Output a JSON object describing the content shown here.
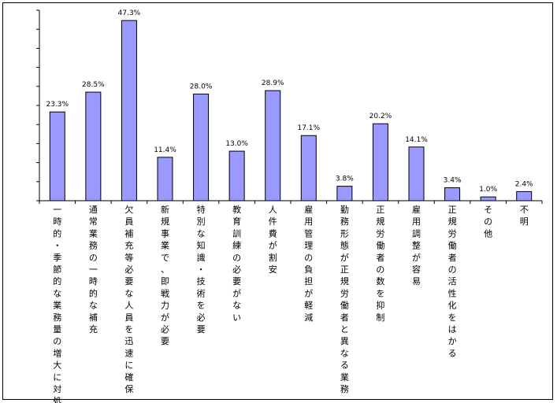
{
  "chart_data": {
    "type": "bar",
    "categories": [
      "一時的・季節的な業務量の増大に対処",
      "通常業務の一時的な補充",
      "欠員補充等必要な人員を迅速に確保",
      "新規事業で、即戦力が必要",
      "特別な知識・技術を必要",
      "教育訓練の必要がない",
      "人件費が割安",
      "雇用管理の負担が軽減",
      "勤務形態が正規労働者と異なる業務",
      "正規労働者の数を抑制",
      "雇用調整が容易",
      "正規労働者の活性化をはかる",
      "その他",
      "不明"
    ],
    "values": [
      23.3,
      28.5,
      47.3,
      11.4,
      28.0,
      13.0,
      28.9,
      17.1,
      3.8,
      20.2,
      14.1,
      3.4,
      1.0,
      2.4
    ],
    "value_labels": [
      "23.3%",
      "28.5%",
      "47.3%",
      "11.4%",
      "28.0%",
      "13.0%",
      "28.9%",
      "17.1%",
      "3.8%",
      "20.2%",
      "14.1%",
      "3.4%",
      "1.0%",
      "2.4%"
    ],
    "ylim": [
      0,
      50
    ],
    "y_tick_step": 5,
    "grid": false,
    "y_tick_labels": false,
    "bar_color": "#9999ff",
    "bar_edge_color": "#000000"
  }
}
